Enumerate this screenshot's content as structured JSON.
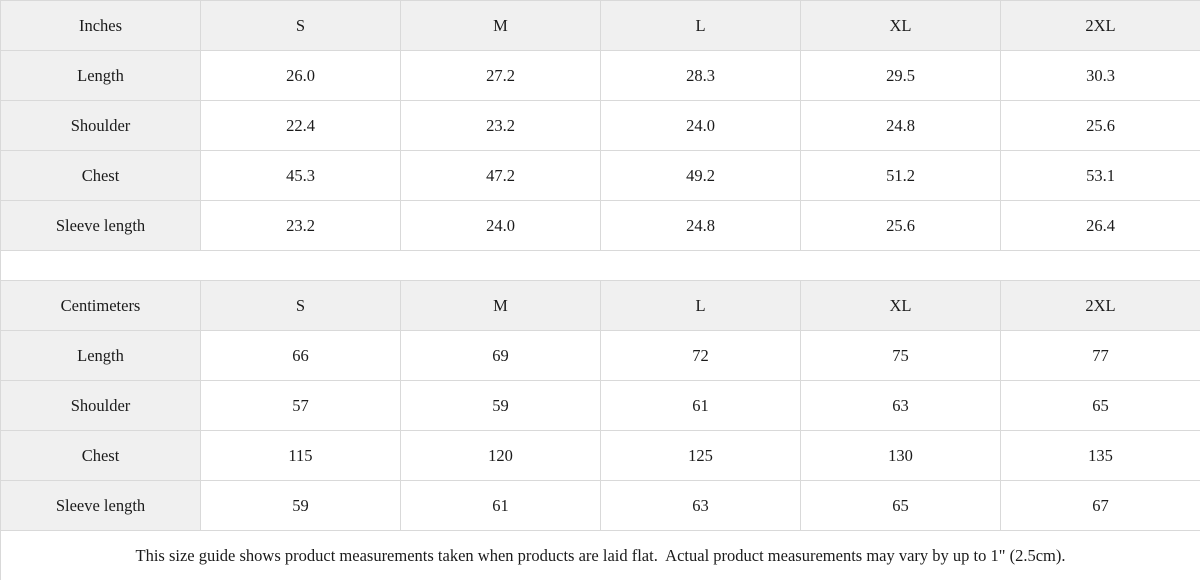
{
  "colors": {
    "header_bg": "#f0f0f0",
    "label_bg": "#f0f0f0",
    "border": "#d9d9d9",
    "text": "#1b1b1b",
    "cell_bg": "#ffffff"
  },
  "tables": [
    {
      "unit_label": "Inches",
      "columns": [
        "S",
        "M",
        "L",
        "XL",
        "2XL"
      ],
      "rows": [
        {
          "label": "Length",
          "values": [
            "26.0",
            "27.2",
            "28.3",
            "29.5",
            "30.3"
          ]
        },
        {
          "label": "Shoulder",
          "values": [
            "22.4",
            "23.2",
            "24.0",
            "24.8",
            "25.6"
          ]
        },
        {
          "label": "Chest",
          "values": [
            "45.3",
            "47.2",
            "49.2",
            "51.2",
            "53.1"
          ]
        },
        {
          "label": "Sleeve length",
          "values": [
            "23.2",
            "24.0",
            "24.8",
            "25.6",
            "26.4"
          ]
        }
      ]
    },
    {
      "unit_label": "Centimeters",
      "columns": [
        "S",
        "M",
        "L",
        "XL",
        "2XL"
      ],
      "rows": [
        {
          "label": "Length",
          "values": [
            "66",
            "69",
            "72",
            "75",
            "77"
          ]
        },
        {
          "label": "Shoulder",
          "values": [
            "57",
            "59",
            "61",
            "63",
            "65"
          ]
        },
        {
          "label": "Chest",
          "values": [
            "115",
            "120",
            "125",
            "130",
            "135"
          ]
        },
        {
          "label": "Sleeve length",
          "values": [
            "59",
            "61",
            "63",
            "65",
            "67"
          ]
        }
      ]
    }
  ],
  "footer": {
    "note": "This size guide shows product measurements taken when products are laid flat.  Actual product measurements may vary by up to 1\" (2.5cm)."
  }
}
